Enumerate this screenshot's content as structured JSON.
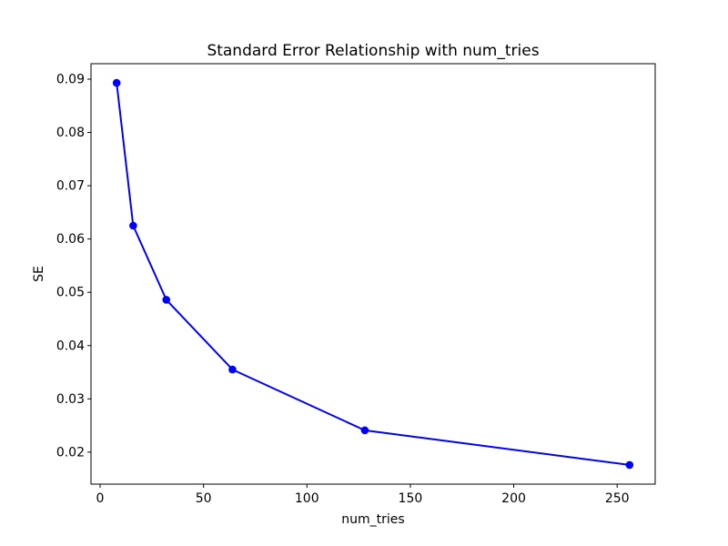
{
  "figure": {
    "background_color": "#ffffff",
    "text_color": "#000000",
    "spine_color": "#000000"
  },
  "chart_data": {
    "type": "line",
    "title": "Standard Error Relationship with num_tries",
    "xlabel": "num_tries",
    "ylabel": "SE",
    "x": [
      8,
      16,
      32,
      64,
      128,
      256
    ],
    "y": [
      0.0893,
      0.0625,
      0.0486,
      0.0355,
      0.0241,
      0.0176
    ],
    "series": [
      {
        "name": "SE",
        "x": [
          8,
          16,
          32,
          64,
          128,
          256
        ],
        "values": [
          0.0893,
          0.0625,
          0.0486,
          0.0355,
          0.0241,
          0.0176
        ]
      }
    ],
    "line_color": "#0000ff",
    "marker": "circle",
    "marker_color": "#0000ff",
    "xlim": [
      -4.4,
      268.4
    ],
    "ylim": [
      0.014,
      0.0929
    ],
    "xticks": [
      0,
      50,
      100,
      150,
      200,
      250
    ],
    "yticks": [
      0.02,
      0.03,
      0.04,
      0.05,
      0.06,
      0.07,
      0.08,
      0.09
    ],
    "xtick_labels": [
      "0",
      "50",
      "100",
      "150",
      "200",
      "250"
    ],
    "ytick_labels": [
      "0.02",
      "0.03",
      "0.04",
      "0.05",
      "0.06",
      "0.07",
      "0.08",
      "0.09"
    ],
    "grid": false,
    "legend": null
  }
}
